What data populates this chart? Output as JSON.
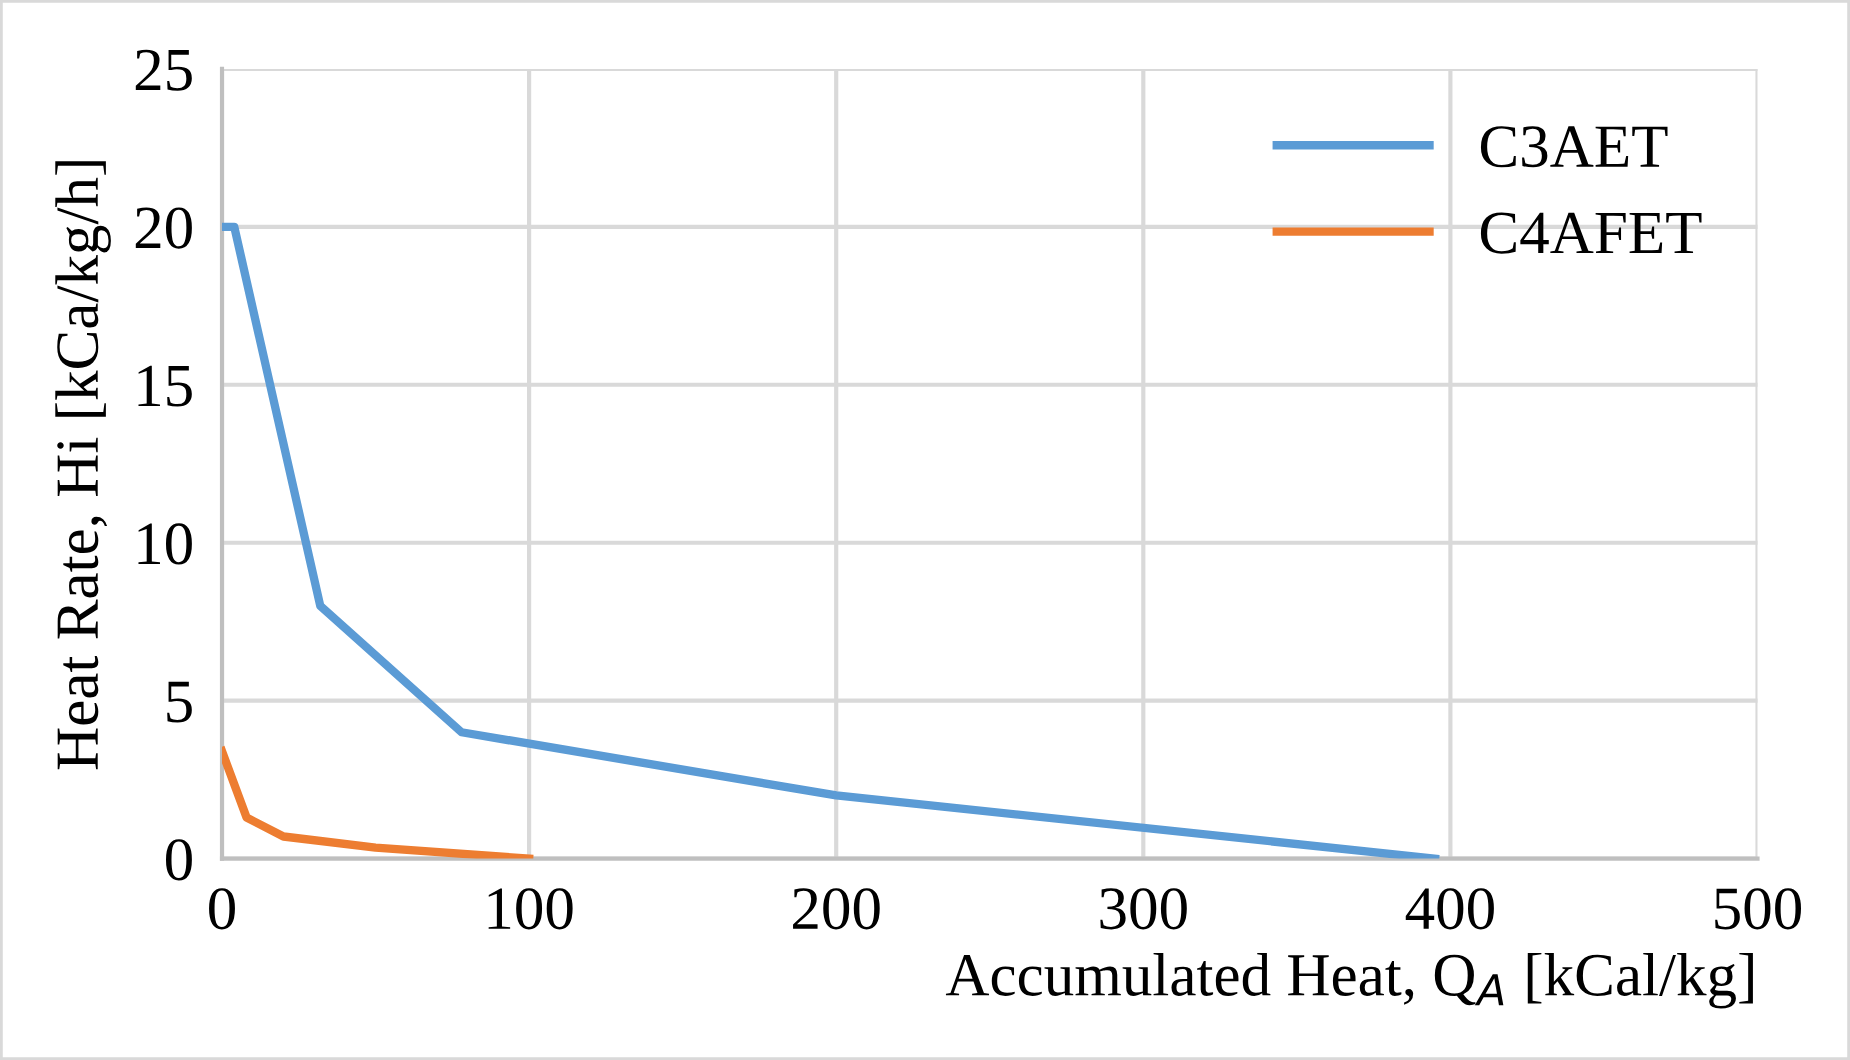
{
  "chart_data": {
    "type": "line",
    "xlabel": "Accumulated Heat, Q$_{A}$ [kCal/kg]",
    "ylabel": "Heat Rate, Hi [kCa/kg/h]",
    "xlim": [
      0,
      500
    ],
    "xticks": [
      0,
      100,
      200,
      300,
      400,
      500
    ],
    "ylim": [
      0,
      25
    ],
    "yticks": [
      0,
      5,
      10,
      15,
      20,
      25
    ],
    "grid": true,
    "legend": "top right",
    "marker": "none",
    "line_style": "solid",
    "series": [
      {
        "name": "C3AET",
        "color": "#5b9bd5",
        "x": [
          0,
          4,
          32,
          78,
          200,
          395
        ],
        "values": [
          20,
          20,
          8,
          4,
          2,
          0
        ]
      },
      {
        "name": "C4AFET",
        "color": "#ed7d31",
        "x": [
          0,
          8,
          20,
          50,
          100
        ],
        "values": [
          3.4,
          1.3,
          0.7,
          0.35,
          0
        ]
      }
    ]
  }
}
